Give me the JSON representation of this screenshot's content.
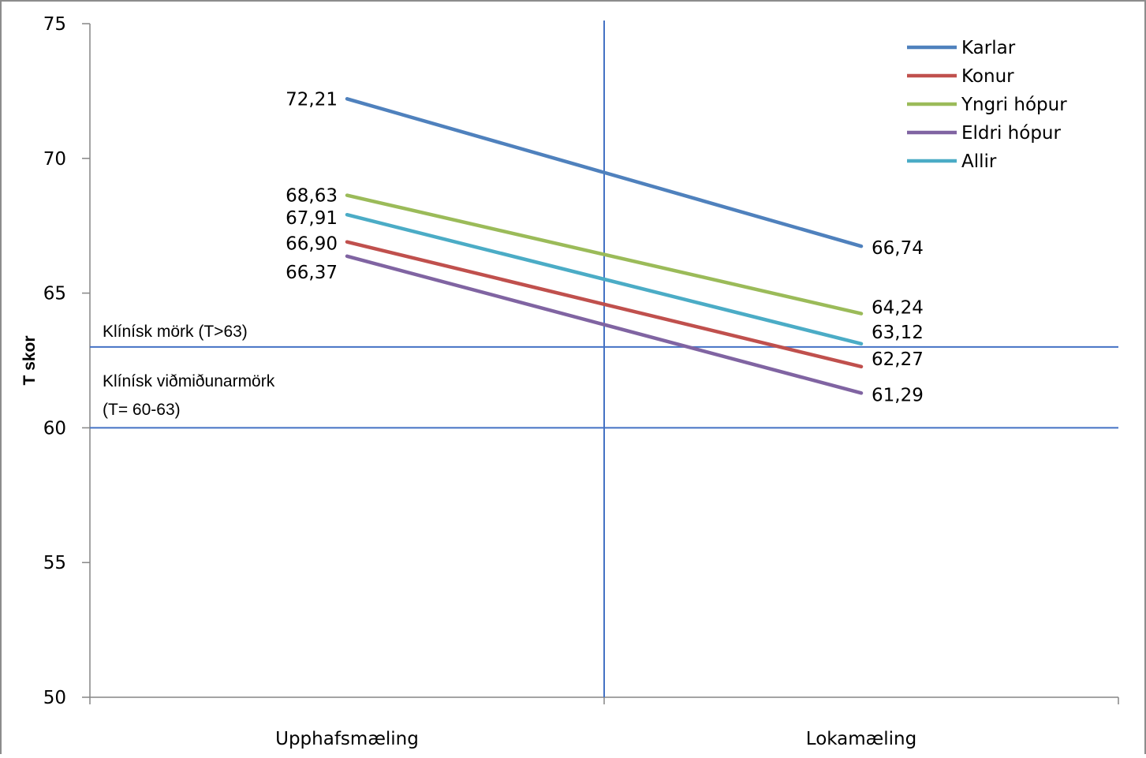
{
  "chart_data": {
    "type": "line",
    "title": "",
    "xlabel": "",
    "ylabel": "T skor",
    "categories": [
      "Upphafsmæling",
      "Lokamæling"
    ],
    "ylim": [
      50,
      75
    ],
    "yticks": [
      "50",
      "55",
      "60",
      "65",
      "70",
      "75"
    ],
    "grid": false,
    "legend_position": "top-right",
    "series": [
      {
        "name": "Karlar",
        "color": "#4F81BD",
        "values": [
          72.21,
          66.74
        ],
        "labels": [
          "72,21",
          "66,74"
        ]
      },
      {
        "name": "Konur",
        "color": "#C0504D",
        "values": [
          66.9,
          62.27
        ],
        "labels": [
          "66,90",
          "62,27"
        ]
      },
      {
        "name": "Yngri hópur",
        "color": "#9BBB59",
        "values": [
          68.63,
          64.24
        ],
        "labels": [
          "68,63",
          "64,24"
        ]
      },
      {
        "name": "Eldri hópur",
        "color": "#8064A2",
        "values": [
          66.37,
          61.29
        ],
        "labels": [
          "66,37",
          "61,29"
        ]
      },
      {
        "name": "Allir",
        "color": "#4BACC6",
        "values": [
          67.91,
          63.12
        ],
        "labels": [
          "67,91",
          "63,12"
        ]
      }
    ],
    "reference_lines": [
      {
        "value": 63,
        "color": "#4472C4",
        "labels": [
          "Klínísk mörk (T>63)"
        ]
      },
      {
        "value": 60,
        "color": "#4472C4",
        "labels": [
          "Klínísk viðmiðunarmörk",
          "(T= 60-63)"
        ]
      }
    ],
    "divider_color": "#4472C4"
  }
}
